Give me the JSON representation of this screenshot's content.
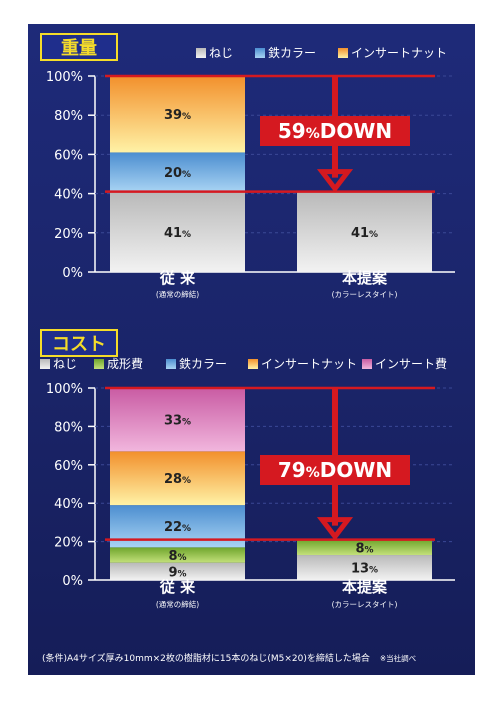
{
  "colors": {
    "bg": "#1b256e",
    "title_box": "#1f2e8c",
    "title_yellow": "#f5dc2a",
    "arrow_red": "#d51920",
    "neji": [
      "#f2f2f2",
      "#b9b9b9"
    ],
    "seikei": [
      "#c3e07a",
      "#6ea52c"
    ],
    "tetsu": [
      "#a8d3f3",
      "#4c8ed0"
    ],
    "insert_nut": [
      "#fff2a6",
      "#f2902c"
    ],
    "insert_hi": [
      "#f1b6dd",
      "#c95ba3"
    ]
  },
  "legend_labels": {
    "neji": "ねじ",
    "seikei": "成形費",
    "tetsu": "鉄カラー",
    "insert_nut": "インサートナット",
    "insert_hi": "インサート費"
  },
  "note": "(条件)A4サイズ厚み10mm×2枚の樹脂材に15本のねじ(M5×20)を締結した場合",
  "source": "※当社調べ",
  "chart_data": [
    {
      "type": "bar",
      "stacked": true,
      "title": "重量",
      "ylim": [
        0,
        100
      ],
      "yticks": [
        "0%",
        "20%",
        "40%",
        "60%",
        "80%",
        "100%"
      ],
      "categories": [
        "従 来",
        "本提案"
      ],
      "category_subs": [
        "(通常の締結)",
        "(カラーレスタイト)"
      ],
      "legend": [
        "neji",
        "tetsu",
        "insert_nut"
      ],
      "series": [
        {
          "key": "neji",
          "name": "ねじ",
          "values": [
            41,
            41
          ],
          "labels": [
            "41",
            "41"
          ]
        },
        {
          "key": "tetsu",
          "name": "鉄カラー",
          "values": [
            20,
            0
          ],
          "labels": [
            "20",
            ""
          ]
        },
        {
          "key": "insert_nut",
          "name": "インサートナット",
          "values": [
            39,
            0
          ],
          "labels": [
            "39",
            ""
          ]
        }
      ],
      "reduction": {
        "number": "59",
        "unit": "%",
        "word": "DOWN",
        "from": 100,
        "to": 41
      }
    },
    {
      "type": "bar",
      "stacked": true,
      "title": "コスト",
      "ylim": [
        0,
        100
      ],
      "yticks": [
        "0%",
        "20%",
        "40%",
        "60%",
        "80%",
        "100%"
      ],
      "categories": [
        "従 来",
        "本提案"
      ],
      "category_subs": [
        "(通常の締結)",
        "(カラーレスタイト)"
      ],
      "legend": [
        "neji",
        "seikei",
        "tetsu",
        "insert_nut",
        "insert_hi"
      ],
      "series": [
        {
          "key": "neji",
          "name": "ねじ",
          "values": [
            9,
            13
          ],
          "labels": [
            "9",
            "13"
          ]
        },
        {
          "key": "seikei",
          "name": "成形費",
          "values": [
            8,
            8
          ],
          "labels": [
            "8",
            "8"
          ]
        },
        {
          "key": "tetsu",
          "name": "鉄カラー",
          "values": [
            22,
            0
          ],
          "labels": [
            "22",
            ""
          ]
        },
        {
          "key": "insert_nut",
          "name": "インサートナット",
          "values": [
            28,
            0
          ],
          "labels": [
            "28",
            ""
          ]
        },
        {
          "key": "insert_hi",
          "name": "インサート費",
          "values": [
            33,
            0
          ],
          "labels": [
            "33",
            ""
          ]
        }
      ],
      "reduction": {
        "number": "79",
        "unit": "%",
        "word": "DOWN",
        "from": 100,
        "to": 21
      }
    }
  ]
}
